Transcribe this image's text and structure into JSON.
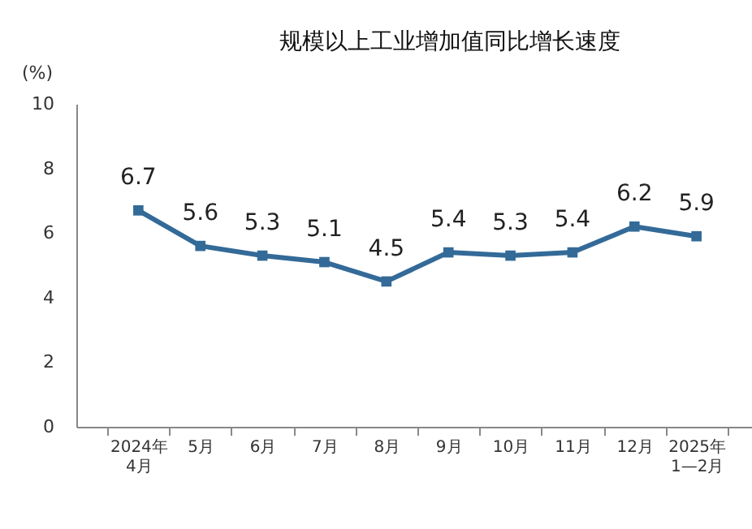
{
  "chart_data": {
    "type": "line",
    "title": "规模以上工业增加值同比增长速度",
    "ylabel": "(%)",
    "categories": [
      "2024年\n4月",
      "5月",
      "6月",
      "7月",
      "8月",
      "9月",
      "10月",
      "11月",
      "12月",
      "2025年\n1—2月"
    ],
    "series": [
      {
        "color": "#336a98",
        "values": [
          6.7,
          5.6,
          5.3,
          5.1,
          4.5,
          5.4,
          5.3,
          5.4,
          6.2,
          5.9
        ]
      }
    ],
    "ylim": [
      0,
      10
    ],
    "yticks": [
      0,
      2,
      4,
      6,
      8,
      10
    ],
    "data_labels": true,
    "marker": "square",
    "grid": false,
    "legend": false
  }
}
